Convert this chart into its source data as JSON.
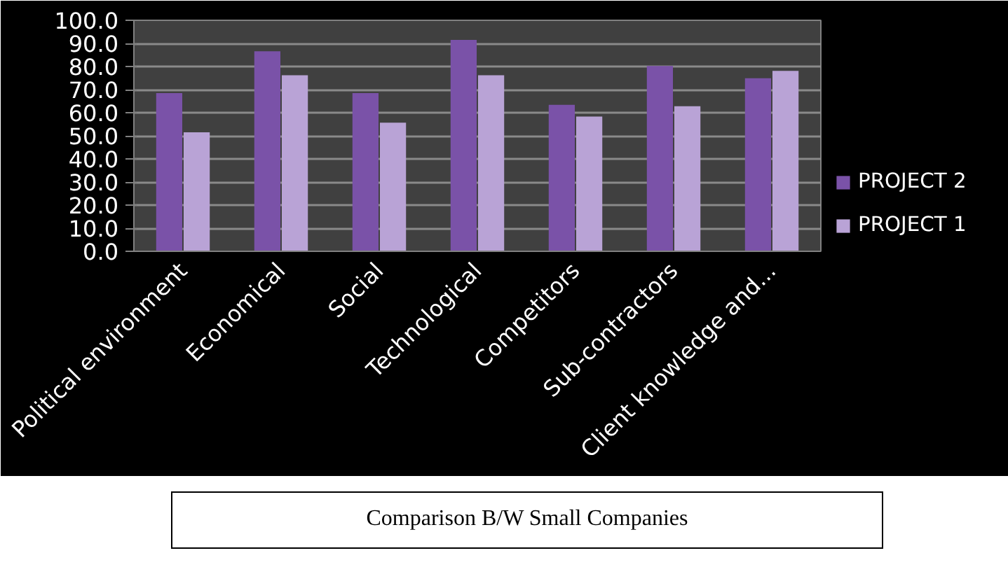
{
  "chart_data": {
    "type": "bar",
    "categories": [
      "Political environment",
      "Economical",
      "Social",
      "Technological",
      "Competitors",
      "Sub-contractors",
      "Client knowledge and..."
    ],
    "series": [
      {
        "name": "PROJECT 2",
        "color": "#7a52a8",
        "values": [
          68.5,
          86.6,
          68.5,
          91.5,
          63.4,
          80.2,
          74.9
        ]
      },
      {
        "name": "PROJECT 1",
        "color": "#b9a3d6",
        "values": [
          51.5,
          76.2,
          55.7,
          76.2,
          58.3,
          62.8,
          78.1
        ]
      }
    ],
    "ylim": [
      0,
      100
    ],
    "yticks": [
      {
        "value": 0,
        "label": "0.0"
      },
      {
        "value": 10,
        "label": "10.0"
      },
      {
        "value": 20,
        "label": "20.0"
      },
      {
        "value": 30,
        "label": "30.0"
      },
      {
        "value": 40,
        "label": "40.0"
      },
      {
        "value": 50,
        "label": "50.0"
      },
      {
        "value": 60,
        "label": "60.0"
      },
      {
        "value": 70,
        "label": "70.0"
      },
      {
        "value": 80,
        "label": "80.0"
      },
      {
        "value": 90,
        "label": "90.0"
      },
      {
        "value": 100,
        "label": "100.0"
      }
    ],
    "grid": "y",
    "legend": "right",
    "annotations": [
      "Comparison B/W Small Companies"
    ]
  }
}
